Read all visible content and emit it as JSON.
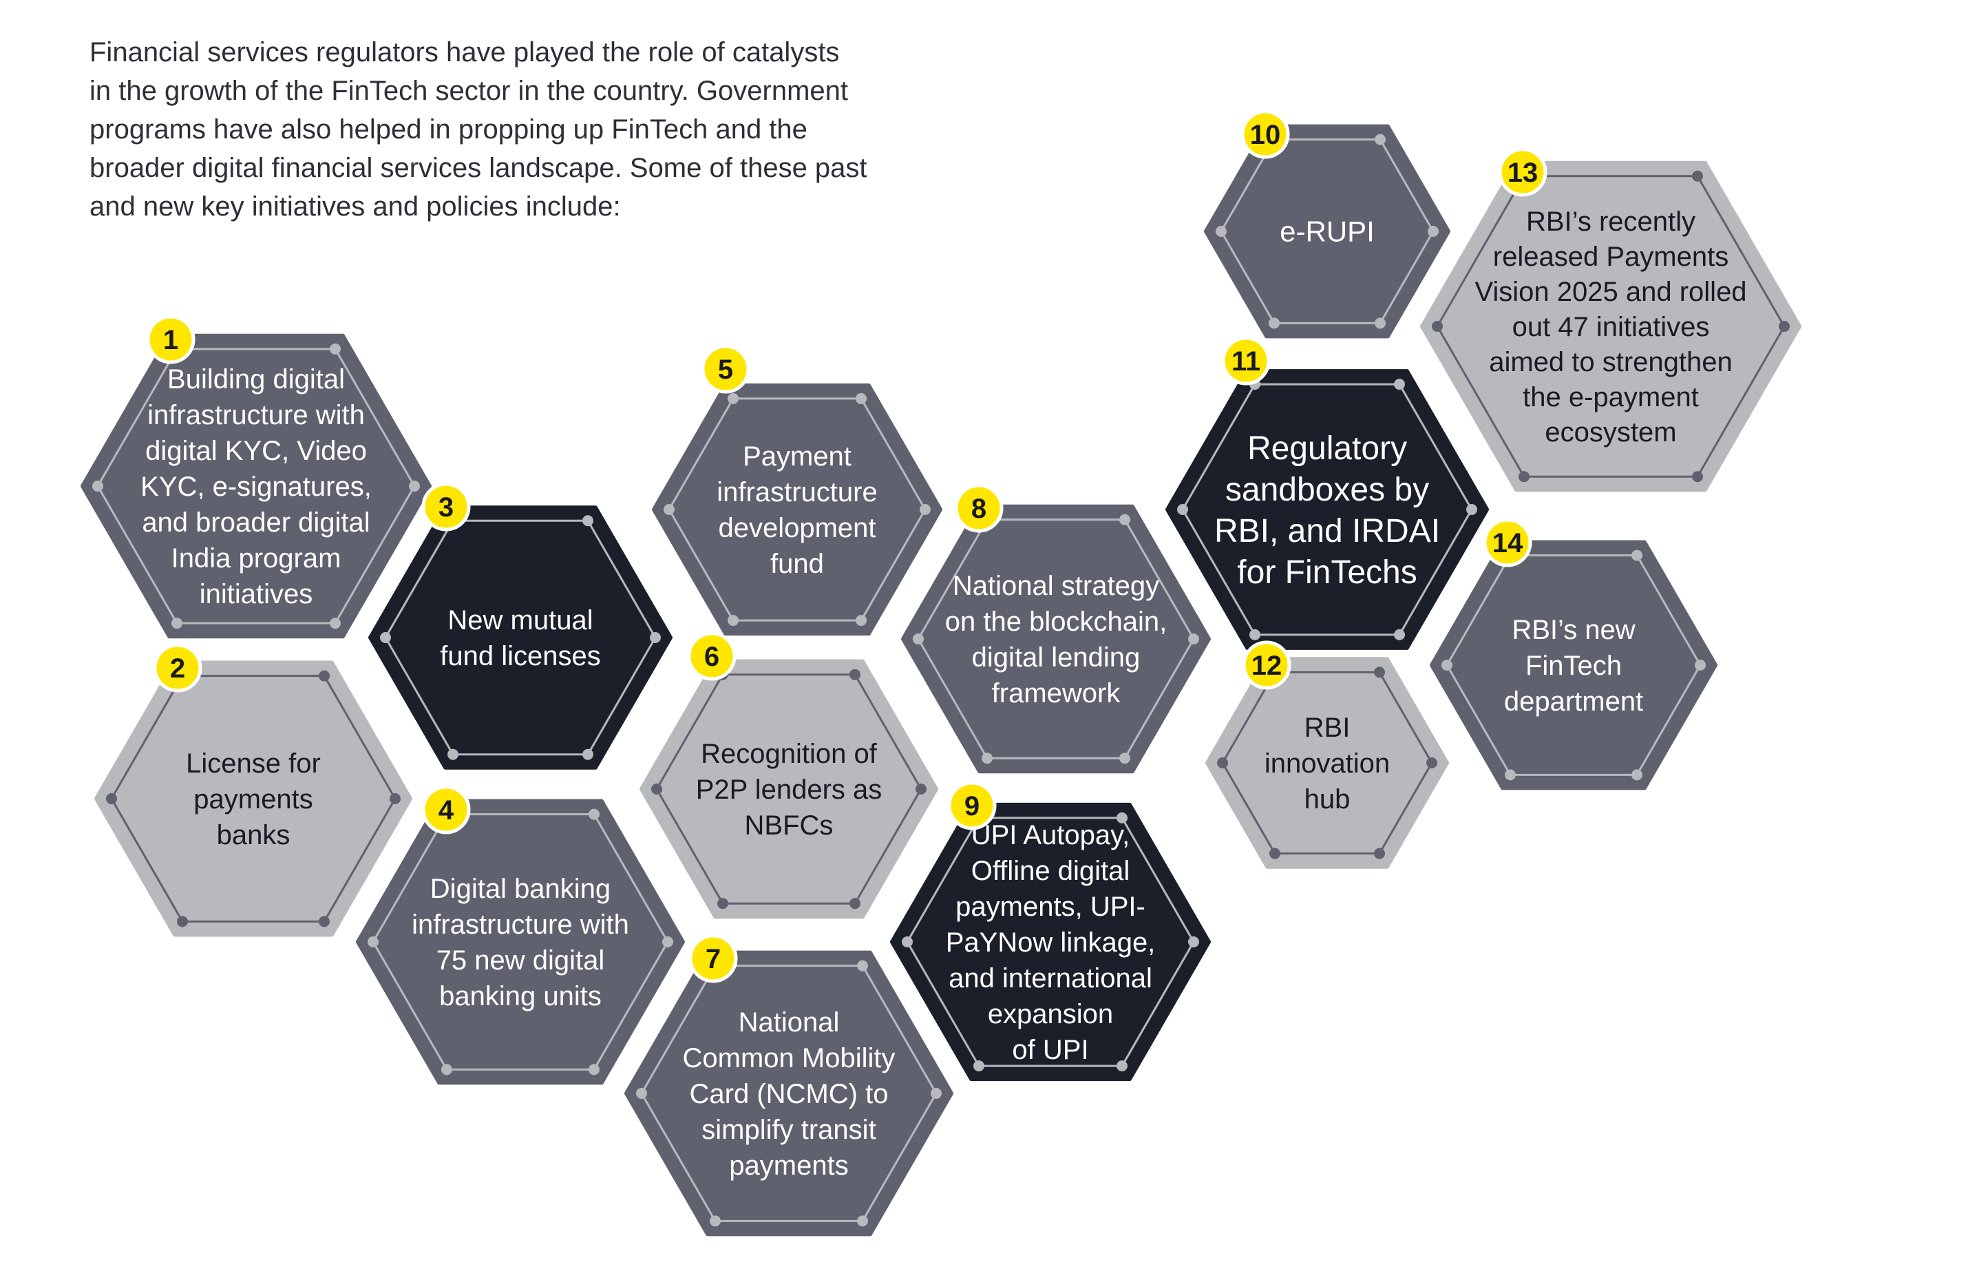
{
  "intro": {
    "lines": [
      "Financial services regulators have played the role of catalysts",
      "in the growth of the FinTech sector in the country. Government",
      "programs have also helped in propping up FinTech and the",
      "broader digital financial services landscape. Some of these past",
      "and new key initiatives and policies include:"
    ]
  },
  "colors": {
    "mid_grey": "#5f616e",
    "light_grey": "#b8b9bd",
    "dark": "#1b1f2a",
    "badge": "#ffe600",
    "text_light": "#ffffff",
    "text_dark": "#1a1a24"
  },
  "initiatives": [
    {
      "number": "1",
      "lines": [
        "Building digital",
        "infrastructure with",
        "digital KYC, Video",
        "KYC, e-signatures,",
        "and broader digital",
        "India program",
        "initiatives"
      ],
      "tone": "mid_grey"
    },
    {
      "number": "2",
      "lines": [
        "License for",
        "payments",
        "banks"
      ],
      "tone": "light_grey"
    },
    {
      "number": "3",
      "lines": [
        "New mutual",
        "fund licenses"
      ],
      "tone": "dark"
    },
    {
      "number": "4",
      "lines": [
        "Digital banking",
        "infrastructure with",
        "75 new digital",
        "banking units"
      ],
      "tone": "mid_grey"
    },
    {
      "number": "5",
      "lines": [
        "Payment",
        "infrastructure",
        "development",
        "fund"
      ],
      "tone": "mid_grey"
    },
    {
      "number": "6",
      "lines": [
        "Recognition of",
        "P2P lenders as",
        "NBFCs"
      ],
      "tone": "light_grey"
    },
    {
      "number": "7",
      "lines": [
        "National",
        "Common Mobility",
        "Card (NCMC) to",
        "simplify transit",
        "payments"
      ],
      "tone": "mid_grey"
    },
    {
      "number": "8",
      "lines": [
        "National strategy",
        "on the blockchain,",
        "digital lending",
        "framework"
      ],
      "tone": "mid_grey"
    },
    {
      "number": "9",
      "lines": [
        "UPI Autopay,",
        "Offline digital",
        "payments, UPI-",
        "PaYNow linkage,",
        "and international",
        "expansion",
        "of UPI"
      ],
      "tone": "dark"
    },
    {
      "number": "10",
      "lines": [
        "e-RUPI"
      ],
      "tone": "mid_grey"
    },
    {
      "number": "11",
      "lines": [
        "Regulatory",
        "sandboxes by",
        "RBI, and IRDAI",
        "for FinTechs"
      ],
      "tone": "dark"
    },
    {
      "number": "12",
      "lines": [
        "RBI",
        "innovation",
        "hub"
      ],
      "tone": "light_grey"
    },
    {
      "number": "13",
      "lines": [
        "RBI’s recently",
        "released Payments",
        "Vision 2025 and rolled",
        "out 47 initiatives",
        "aimed to strengthen",
        "the e-payment",
        "ecosystem"
      ],
      "tone": "light_grey"
    },
    {
      "number": "14",
      "lines": [
        "RBI’s new",
        "FinTech",
        "department"
      ],
      "tone": "mid_grey"
    }
  ]
}
